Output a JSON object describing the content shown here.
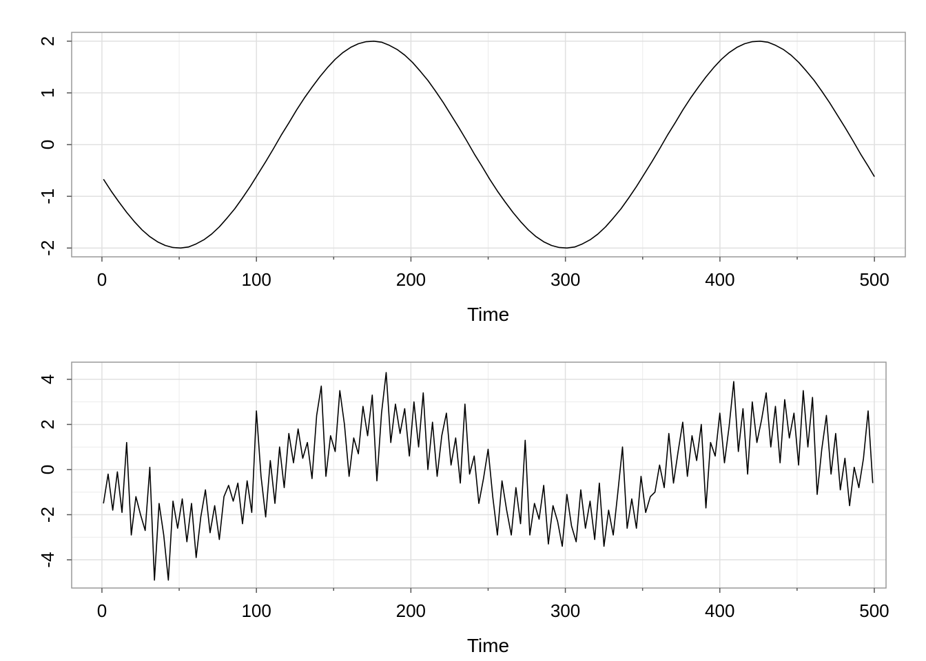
{
  "chart_data": [
    {
      "type": "line",
      "xlabel": "Time",
      "x": [
        1,
        6,
        11,
        16,
        21,
        26,
        31,
        36,
        41,
        46,
        51,
        56,
        61,
        66,
        71,
        76,
        81,
        86,
        91,
        96,
        101,
        106,
        111,
        116,
        121,
        126,
        131,
        136,
        141,
        146,
        151,
        156,
        161,
        166,
        171,
        176,
        181,
        186,
        191,
        196,
        201,
        206,
        211,
        216,
        221,
        226,
        231,
        236,
        241,
        246,
        251,
        256,
        261,
        266,
        271,
        276,
        281,
        286,
        291,
        296,
        301,
        306,
        311,
        316,
        321,
        326,
        331,
        336,
        341,
        346,
        351,
        356,
        361,
        366,
        371,
        376,
        381,
        386,
        391,
        396,
        401,
        406,
        411,
        416,
        421,
        426,
        431,
        436,
        441,
        446,
        451,
        456,
        461,
        466,
        471,
        476,
        481,
        486,
        491,
        496,
        500
      ],
      "series": [
        {
          "color": "#000000",
          "values": [
            -0.67,
            -0.9,
            -1.11,
            -1.31,
            -1.49,
            -1.65,
            -1.78,
            -1.88,
            -1.95,
            -1.99,
            -2.0,
            -1.98,
            -1.92,
            -1.84,
            -1.73,
            -1.59,
            -1.42,
            -1.24,
            -1.03,
            -0.81,
            -0.57,
            -0.33,
            -0.08,
            0.18,
            0.42,
            0.67,
            0.9,
            1.11,
            1.31,
            1.49,
            1.65,
            1.78,
            1.88,
            1.95,
            1.99,
            2.0,
            1.98,
            1.92,
            1.84,
            1.73,
            1.59,
            1.42,
            1.24,
            1.03,
            0.81,
            0.57,
            0.33,
            0.08,
            -0.18,
            -0.42,
            -0.67,
            -0.9,
            -1.11,
            -1.31,
            -1.49,
            -1.65,
            -1.78,
            -1.88,
            -1.95,
            -1.99,
            -2.0,
            -1.98,
            -1.92,
            -1.84,
            -1.73,
            -1.59,
            -1.42,
            -1.24,
            -1.03,
            -0.81,
            -0.57,
            -0.33,
            -0.08,
            0.18,
            0.42,
            0.67,
            0.9,
            1.11,
            1.31,
            1.49,
            1.65,
            1.78,
            1.88,
            1.95,
            1.99,
            2.0,
            1.98,
            1.92,
            1.84,
            1.73,
            1.59,
            1.42,
            1.24,
            1.03,
            0.81,
            0.57,
            0.33,
            0.08,
            -0.18,
            -0.42,
            -0.62
          ]
        }
      ],
      "xlim": [
        -19.6,
        520
      ],
      "ylim": [
        -2.17,
        2.17
      ],
      "xticks": [
        0,
        100,
        200,
        300,
        400,
        500
      ],
      "yticks": [
        -2,
        -1,
        0,
        1,
        2
      ],
      "xminor": [
        50,
        150,
        250,
        350,
        450
      ],
      "yminor": [],
      "grid": true
    },
    {
      "type": "line",
      "xlabel": "Time",
      "x": [
        1,
        4,
        7,
        10,
        13,
        16,
        19,
        22,
        25,
        28,
        31,
        34,
        37,
        40,
        43,
        46,
        49,
        52,
        55,
        58,
        61,
        64,
        67,
        70,
        73,
        76,
        79,
        82,
        85,
        88,
        91,
        94,
        97,
        100,
        103,
        106,
        109,
        112,
        115,
        118,
        121,
        124,
        127,
        130,
        133,
        136,
        139,
        142,
        145,
        148,
        151,
        154,
        157,
        160,
        163,
        166,
        169,
        172,
        175,
        178,
        181,
        184,
        187,
        190,
        193,
        196,
        199,
        202,
        205,
        208,
        211,
        214,
        217,
        220,
        223,
        226,
        229,
        232,
        235,
        238,
        241,
        244,
        247,
        250,
        253,
        256,
        259,
        262,
        265,
        268,
        271,
        274,
        277,
        280,
        283,
        286,
        289,
        292,
        295,
        298,
        301,
        304,
        307,
        310,
        313,
        316,
        319,
        322,
        325,
        328,
        331,
        334,
        337,
        340,
        343,
        346,
        349,
        352,
        355,
        358,
        361,
        364,
        367,
        370,
        373,
        376,
        379,
        382,
        385,
        388,
        391,
        394,
        397,
        400,
        403,
        406,
        409,
        412,
        415,
        418,
        421,
        424,
        427,
        430,
        433,
        436,
        439,
        442,
        445,
        448,
        451,
        454,
        457,
        460,
        463,
        466,
        469,
        472,
        475,
        478,
        481,
        484,
        487,
        490,
        493,
        496,
        499
      ],
      "series": [
        {
          "color": "#000000",
          "values": [
            -1.5,
            -0.2,
            -1.8,
            -0.1,
            -1.9,
            1.2,
            -2.9,
            -1.2,
            -2.0,
            -2.7,
            0.1,
            -4.9,
            -1.5,
            -2.9,
            -4.9,
            -1.4,
            -2.6,
            -1.3,
            -3.2,
            -1.5,
            -3.9,
            -2.1,
            -0.9,
            -2.8,
            -1.6,
            -3.1,
            -1.2,
            -0.7,
            -1.4,
            -0.6,
            -2.4,
            -0.5,
            -1.9,
            2.6,
            -0.3,
            -2.1,
            0.4,
            -1.5,
            1.0,
            -0.8,
            1.6,
            0.3,
            1.8,
            0.5,
            1.2,
            -0.4,
            2.4,
            3.7,
            -0.3,
            1.5,
            0.8,
            3.5,
            2.0,
            -0.3,
            1.4,
            0.7,
            2.8,
            1.5,
            3.3,
            -0.5,
            2.5,
            4.3,
            1.2,
            2.9,
            1.6,
            2.7,
            0.6,
            3.0,
            1.0,
            3.4,
            0.0,
            2.1,
            -0.3,
            1.5,
            2.5,
            0.2,
            1.4,
            -0.6,
            2.9,
            -0.2,
            0.6,
            -1.5,
            -0.4,
            0.9,
            -1.2,
            -2.9,
            -0.5,
            -1.8,
            -2.9,
            -0.8,
            -2.4,
            1.3,
            -2.9,
            -1.5,
            -2.2,
            -0.7,
            -3.3,
            -1.6,
            -2.3,
            -3.4,
            -1.1,
            -2.5,
            -3.2,
            -0.9,
            -2.6,
            -1.4,
            -3.1,
            -0.6,
            -3.4,
            -1.8,
            -2.9,
            -1.0,
            1.0,
            -2.6,
            -1.3,
            -2.6,
            -0.3,
            -1.9,
            -1.2,
            -1.0,
            0.2,
            -0.8,
            1.6,
            -0.6,
            0.8,
            2.1,
            -0.3,
            1.5,
            0.4,
            2.0,
            -1.7,
            1.2,
            0.6,
            2.5,
            0.3,
            1.9,
            3.9,
            0.8,
            2.7,
            -0.2,
            3.0,
            1.2,
            2.2,
            3.4,
            1.0,
            2.8,
            0.3,
            3.1,
            1.4,
            2.5,
            0.2,
            3.5,
            1.0,
            3.2,
            -1.1,
            0.9,
            2.4,
            -0.2,
            1.6,
            -0.9,
            0.5,
            -1.6,
            0.1,
            -0.8,
            0.5,
            2.6,
            -0.6
          ]
        }
      ],
      "xlim": [
        -19.6,
        507.6
      ],
      "ylim": [
        -5.25,
        4.76
      ],
      "xticks": [
        0,
        100,
        200,
        300,
        400,
        500
      ],
      "yticks": [
        -4,
        -2,
        0,
        2,
        4
      ],
      "xminor": [
        50,
        150,
        250,
        350,
        450
      ],
      "yminor": [
        -3,
        -1,
        1,
        3
      ],
      "grid": true
    }
  ]
}
